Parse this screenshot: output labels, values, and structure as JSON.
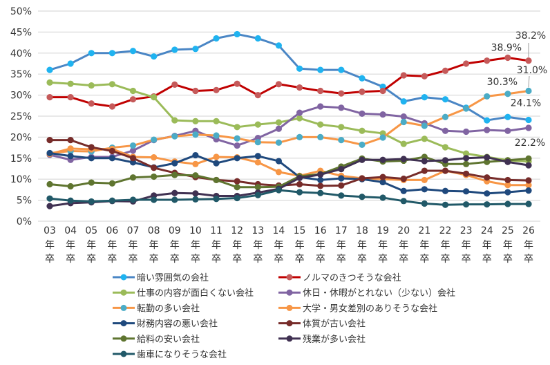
{
  "chart_data": {
    "type": "line",
    "title": "",
    "xlabel": "",
    "ylabel": "",
    "ylim": [
      0,
      50
    ],
    "yticks": [
      "0%",
      "5%",
      "10%",
      "15%",
      "20%",
      "25%",
      "30%",
      "35%",
      "40%",
      "45%",
      "50%"
    ],
    "grid": true,
    "legend_position": "bottom",
    "x": [
      "03",
      "04",
      "05",
      "06",
      "07",
      "08",
      "09",
      "10",
      "11",
      "12",
      "13",
      "14",
      "15",
      "16",
      "17",
      "18",
      "19",
      "20",
      "21",
      "22",
      "23",
      "24",
      "25",
      "26"
    ],
    "x_suffix": [
      "年",
      "卒"
    ],
    "series": [
      {
        "name": "暗い雰囲気の会社",
        "line": "#4a86c5",
        "marker": "#1fb3f0",
        "values": [
          36,
          37.5,
          40,
          40,
          40.5,
          39.2,
          40.8,
          41,
          43.5,
          44.5,
          43.5,
          41.8,
          36.3,
          36,
          36,
          34,
          32,
          28.5,
          29.5,
          29,
          27,
          24,
          24.8,
          24.1
        ]
      },
      {
        "name": "ノルマのきつそうな会社",
        "line": "#c00000",
        "marker": "#c55a5a",
        "values": [
          29.5,
          29.5,
          28,
          27.3,
          29,
          29.7,
          32.5,
          31,
          31.2,
          32.7,
          30,
          32.6,
          31.8,
          31,
          30.4,
          30.8,
          31,
          34.7,
          34.5,
          35.8,
          37.5,
          38.2,
          38.9,
          38.2
        ]
      },
      {
        "name": "仕事の内容が面白くない会社",
        "line": "#9bbb59",
        "marker": "#9bbb59",
        "values": [
          33,
          32.7,
          32.3,
          32.6,
          31,
          29.5,
          24,
          23.8,
          23.8,
          22.4,
          23,
          23.5,
          24.5,
          23,
          22.4,
          21.5,
          20.9,
          18.4,
          19.6,
          17.6,
          16.1,
          15.3,
          14.5,
          14.2
        ]
      },
      {
        "name": "休日・休暇がとれない（少ない）会社",
        "line": "#8064a2",
        "marker": "#8064a2",
        "values": [
          15.8,
          14.6,
          15.3,
          15.3,
          16.8,
          19.3,
          20.3,
          21.5,
          19.5,
          18,
          19.8,
          22,
          25.8,
          27.3,
          27,
          25.6,
          25.4,
          24.9,
          23.3,
          21.5,
          21.3,
          21.7,
          21.5,
          22.2
        ]
      },
      {
        "name": "転勤の多い会社",
        "line": "#f79646",
        "marker": "#4bacc6",
        "values": [
          16.2,
          16.7,
          16.6,
          17.5,
          18,
          19.4,
          20.2,
          20.6,
          20.4,
          19.7,
          18.8,
          18.7,
          20,
          20,
          19.3,
          18.2,
          19.9,
          23.6,
          22.7,
          24.8,
          26.8,
          29.7,
          30.3,
          31.0
        ]
      },
      {
        "name": "大学・男女差別のありそうな会社",
        "line": "#f79646",
        "marker": "#f79646",
        "values": [
          16,
          17.3,
          17.1,
          17.2,
          15.3,
          15.2,
          14.2,
          13.6,
          15.3,
          15.2,
          14,
          11.7,
          10.8,
          12,
          10.8,
          10.2,
          10,
          9.8,
          9.8,
          12,
          11,
          9.5,
          8.6,
          8.6
        ]
      },
      {
        "name": "財務内容の悪い会社",
        "line": "#1f497d",
        "marker": "#1f497d",
        "values": [
          16.2,
          15.5,
          15,
          15,
          14,
          12.8,
          13.8,
          15.7,
          13.8,
          15,
          15.5,
          14.3,
          10.5,
          9.8,
          10.2,
          10,
          9.3,
          7.2,
          7.6,
          7.2,
          7.1,
          6.6,
          6.9,
          7.3
        ]
      },
      {
        "name": "体質が古い会社",
        "line": "#772c2a",
        "marker": "#772c2a",
        "values": [
          19.3,
          19.3,
          17.6,
          16.7,
          15,
          12.7,
          11.5,
          10.5,
          9.8,
          9.5,
          8.8,
          8.5,
          8.8,
          8.4,
          8.5,
          10.2,
          10.5,
          10.1,
          12,
          12,
          11.3,
          10.4,
          9.8,
          9.7
        ]
      },
      {
        "name": "給料の安い会社",
        "line": "#5f7530",
        "marker": "#5f7530",
        "values": [
          8.8,
          8.3,
          9.2,
          9,
          10.4,
          10.6,
          11,
          10.9,
          9.8,
          8.1,
          8.1,
          8.2,
          10.7,
          11.2,
          13,
          14.9,
          14.2,
          14.4,
          15.3,
          13.6,
          13.6,
          14.1,
          14.5,
          14.9
        ]
      },
      {
        "name": "残業が多い会社",
        "line": "#403152",
        "marker": "#403152",
        "values": [
          3.6,
          4.3,
          4.5,
          4.8,
          4.7,
          6.1,
          6.7,
          6.6,
          6,
          6,
          6.8,
          7.7,
          10.3,
          11.1,
          12.4,
          14.6,
          14.6,
          14.8,
          14.3,
          14.5,
          15,
          15.2,
          14.1,
          13.3
        ]
      },
      {
        "name": "歯車になりそうな会社",
        "line": "#215968",
        "marker": "#215968",
        "values": [
          5.4,
          4.9,
          4.7,
          4.9,
          5.1,
          5.1,
          5.1,
          5.2,
          5.3,
          5.5,
          6.2,
          7.4,
          6.9,
          6.7,
          6.1,
          5.8,
          5.6,
          4.8,
          4.2,
          3.9,
          4,
          4,
          4.1,
          4.1
        ]
      }
    ],
    "annotations": [
      {
        "text": "38.2%",
        "series": 1,
        "x": "26"
      },
      {
        "text": "38.9%",
        "series": 1,
        "x": "25"
      },
      {
        "text": "30.3%",
        "series": 4,
        "x": "25"
      },
      {
        "text": "31.0%",
        "series": 4,
        "x": "26"
      },
      {
        "text": "24.1%",
        "series": 0,
        "x": "26"
      },
      {
        "text": "22.2%",
        "series": 3,
        "x": "26"
      }
    ]
  }
}
